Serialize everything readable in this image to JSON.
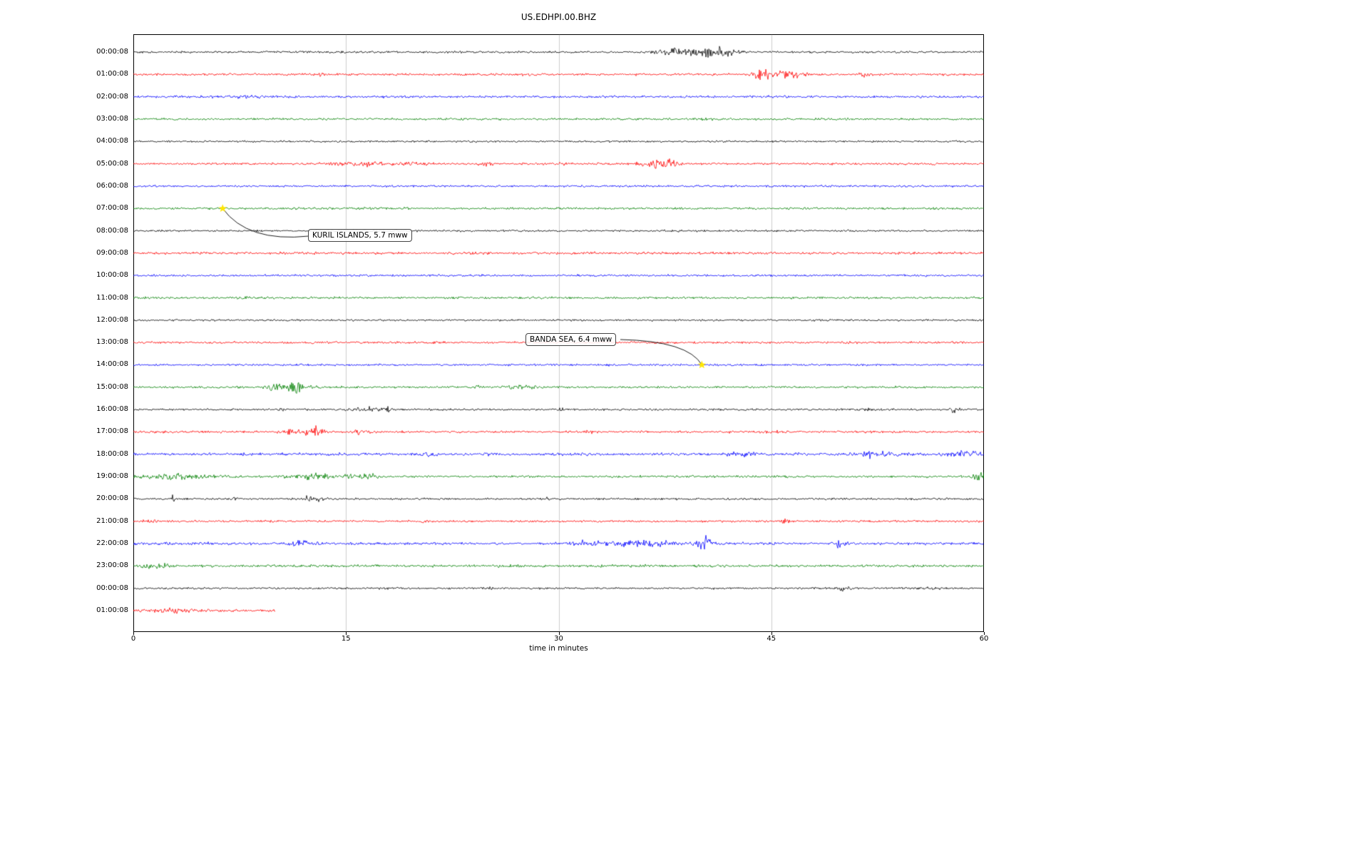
{
  "title": "US.EDHPI.00.BHZ",
  "x_axis": {
    "label": "time in minutes",
    "ticks": [
      "0",
      "15",
      "30",
      "45",
      "60"
    ]
  },
  "colors": {
    "grid": "#cccccc",
    "axis": "#000000",
    "marker_star": "#ffe600",
    "trace_cycle": [
      "#000000",
      "#ff0000",
      "#0000ff",
      "#008000"
    ]
  },
  "chart_data": {
    "type": "line",
    "variant": "seismogram_day_plot",
    "title": "US.EDHPI.00.BHZ",
    "xlabel": "time in minutes",
    "xlim": [
      0,
      60
    ],
    "x_ticks": [
      0,
      15,
      30,
      45,
      60
    ],
    "minutes_per_row": 60,
    "grid": "vertical gridlines at x ticks",
    "legend": "none",
    "rows": [
      {
        "label": "00:00:08",
        "color": "#000000",
        "base": 1.0,
        "bursts": [
          {
            "t": 37.8,
            "a": 4.5,
            "w": 0.5
          },
          {
            "t": 40.2,
            "a": 5.5,
            "w": 0.9
          },
          {
            "t": 41.8,
            "a": 4.0,
            "w": 0.5
          }
        ]
      },
      {
        "label": "01:00:08",
        "color": "#ff0000",
        "base": 1.1,
        "bursts": [
          {
            "t": 13.3,
            "a": 3.0,
            "w": 0.15
          },
          {
            "t": 44.3,
            "a": 6.5,
            "w": 0.35
          },
          {
            "t": 45.9,
            "a": 4.5,
            "w": 0.8
          },
          {
            "t": 51.6,
            "a": 3.0,
            "w": 0.25
          }
        ]
      },
      {
        "label": "02:00:08",
        "color": "#0000ff",
        "base": 1.05,
        "bursts": [
          {
            "t": 8.0,
            "a": 1.6,
            "w": 1.5
          }
        ]
      },
      {
        "label": "03:00:08",
        "color": "#008000",
        "base": 1.0,
        "bursts": [
          {
            "t": 40.5,
            "a": 1.5,
            "w": 1.0
          }
        ]
      },
      {
        "label": "04:00:08",
        "color": "#000000",
        "base": 0.9,
        "bursts": []
      },
      {
        "label": "05:00:08",
        "color": "#ff0000",
        "base": 1.0,
        "bursts": [
          {
            "t": 16.0,
            "a": 2.4,
            "w": 1.6
          },
          {
            "t": 19.8,
            "a": 2.0,
            "w": 0.8
          },
          {
            "t": 24.8,
            "a": 3.2,
            "w": 0.3
          },
          {
            "t": 30.3,
            "a": 2.0,
            "w": 0.3
          },
          {
            "t": 36.9,
            "a": 5.5,
            "w": 0.7
          },
          {
            "t": 38.0,
            "a": 3.5,
            "w": 0.4
          }
        ]
      },
      {
        "label": "06:00:08",
        "color": "#0000ff",
        "base": 1.0,
        "bursts": []
      },
      {
        "label": "07:00:08",
        "color": "#008000",
        "base": 1.0,
        "bursts": [
          {
            "t": 15.5,
            "a": 1.5,
            "w": 2.0
          }
        ]
      },
      {
        "label": "08:00:08",
        "color": "#000000",
        "base": 0.9,
        "bursts": []
      },
      {
        "label": "09:00:08",
        "color": "#ff0000",
        "base": 1.15,
        "bursts": []
      },
      {
        "label": "10:00:08",
        "color": "#0000ff",
        "base": 1.0,
        "bursts": []
      },
      {
        "label": "11:00:08",
        "color": "#008000",
        "base": 1.0,
        "bursts": [
          {
            "t": 8.2,
            "a": 1.5,
            "w": 0.8
          }
        ]
      },
      {
        "label": "12:00:08",
        "color": "#000000",
        "base": 0.9,
        "bursts": []
      },
      {
        "label": "13:00:08",
        "color": "#ff0000",
        "base": 1.05,
        "bursts": []
      },
      {
        "label": "14:00:08",
        "color": "#0000ff",
        "base": 1.0,
        "bursts": []
      },
      {
        "label": "15:00:08",
        "color": "#008000",
        "base": 1.0,
        "bursts": [
          {
            "t": 10.6,
            "a": 6.5,
            "w": 0.7
          },
          {
            "t": 11.8,
            "a": 4.0,
            "w": 0.5
          },
          {
            "t": 24.2,
            "a": 3.0,
            "w": 0.25
          },
          {
            "t": 27.3,
            "a": 2.5,
            "w": 0.7
          }
        ]
      },
      {
        "label": "16:00:08",
        "color": "#000000",
        "base": 0.95,
        "bursts": [
          {
            "t": 10.4,
            "a": 2.0,
            "w": 0.2
          },
          {
            "t": 16.6,
            "a": 2.8,
            "w": 0.9
          },
          {
            "t": 17.9,
            "a": 6.5,
            "w": 0.15
          },
          {
            "t": 30.0,
            "a": 2.4,
            "w": 0.25
          },
          {
            "t": 52.0,
            "a": 1.8,
            "w": 0.4
          },
          {
            "t": 57.9,
            "a": 3.5,
            "w": 0.25
          }
        ]
      },
      {
        "label": "17:00:08",
        "color": "#ff0000",
        "base": 1.05,
        "bursts": [
          {
            "t": 10.8,
            "a": 3.5,
            "w": 0.3
          },
          {
            "t": 12.6,
            "a": 7.0,
            "w": 0.5
          },
          {
            "t": 16.1,
            "a": 2.8,
            "w": 0.5
          },
          {
            "t": 32.2,
            "a": 2.4,
            "w": 0.3
          },
          {
            "t": 45.2,
            "a": 1.8,
            "w": 0.4
          }
        ]
      },
      {
        "label": "18:00:08",
        "color": "#0000ff",
        "base": 1.35,
        "bursts": [
          {
            "t": 20.6,
            "a": 1.8,
            "w": 0.3
          },
          {
            "t": 43.0,
            "a": 1.8,
            "w": 0.8
          },
          {
            "t": 52.2,
            "a": 2.6,
            "w": 1.0
          },
          {
            "t": 58.6,
            "a": 3.2,
            "w": 0.7
          }
        ]
      },
      {
        "label": "19:00:08",
        "color": "#008000",
        "base": 1.05,
        "bursts": [
          {
            "t": 3.0,
            "a": 2.8,
            "w": 1.8
          },
          {
            "t": 13.0,
            "a": 3.0,
            "w": 1.8
          },
          {
            "t": 16.6,
            "a": 2.6,
            "w": 0.4
          },
          {
            "t": 59.8,
            "a": 7.0,
            "w": 0.3
          }
        ]
      },
      {
        "label": "20:00:08",
        "color": "#000000",
        "base": 0.95,
        "bursts": [
          {
            "t": 2.8,
            "a": 3.5,
            "w": 0.12
          },
          {
            "t": 7.2,
            "a": 3.5,
            "w": 0.12
          },
          {
            "t": 12.3,
            "a": 4.5,
            "w": 0.2
          },
          {
            "t": 13.1,
            "a": 3.5,
            "w": 0.2
          },
          {
            "t": 29.0,
            "a": 2.0,
            "w": 0.2
          }
        ]
      },
      {
        "label": "21:00:08",
        "color": "#ff0000",
        "base": 1.0,
        "bursts": [
          {
            "t": 1.2,
            "a": 2.6,
            "w": 0.4
          },
          {
            "t": 20.5,
            "a": 2.8,
            "w": 0.2
          },
          {
            "t": 46.0,
            "a": 3.2,
            "w": 0.2
          }
        ]
      },
      {
        "label": "22:00:08",
        "color": "#0000ff",
        "base": 1.25,
        "bursts": [
          {
            "t": 12.0,
            "a": 2.6,
            "w": 0.7
          },
          {
            "t": 31.8,
            "a": 2.2,
            "w": 0.8
          },
          {
            "t": 34.5,
            "a": 2.4,
            "w": 1.5
          },
          {
            "t": 36.5,
            "a": 2.6,
            "w": 1.0
          },
          {
            "t": 40.3,
            "a": 5.5,
            "w": 0.4
          },
          {
            "t": 49.7,
            "a": 2.8,
            "w": 0.3
          }
        ]
      },
      {
        "label": "23:00:08",
        "color": "#008000",
        "base": 1.2,
        "bursts": [
          {
            "t": 1.5,
            "a": 3.0,
            "w": 0.7
          }
        ]
      },
      {
        "label": "00:00:08",
        "color": "#000000",
        "base": 0.95,
        "bursts": [
          {
            "t": 6.3,
            "a": 3.5,
            "w": 0.12
          },
          {
            "t": 25.2,
            "a": 2.2,
            "w": 0.12
          },
          {
            "t": 50.0,
            "a": 3.0,
            "w": 0.35
          },
          {
            "t": 54.5,
            "a": 3.5,
            "w": 0.2
          },
          {
            "t": 56.0,
            "a": 1.8,
            "w": 0.8
          }
        ]
      },
      {
        "label": "01:00:08",
        "color": "#ff0000",
        "base": 1.3,
        "duration_min": 10,
        "bursts": [
          {
            "t": 3.0,
            "a": 2.2,
            "w": 1.2
          }
        ]
      }
    ],
    "annotations": [
      {
        "text": "KURIL ISLANDS, 5.7 mww",
        "row_index": 7,
        "row_label": "07:00:08",
        "time_min": 6.3,
        "marker": "yellow-star"
      },
      {
        "text": "BANDA SEA, 6.4 mww",
        "row_index": 14,
        "row_label": "14:00:08",
        "time_min": 40.1,
        "marker": "yellow-star"
      }
    ]
  }
}
